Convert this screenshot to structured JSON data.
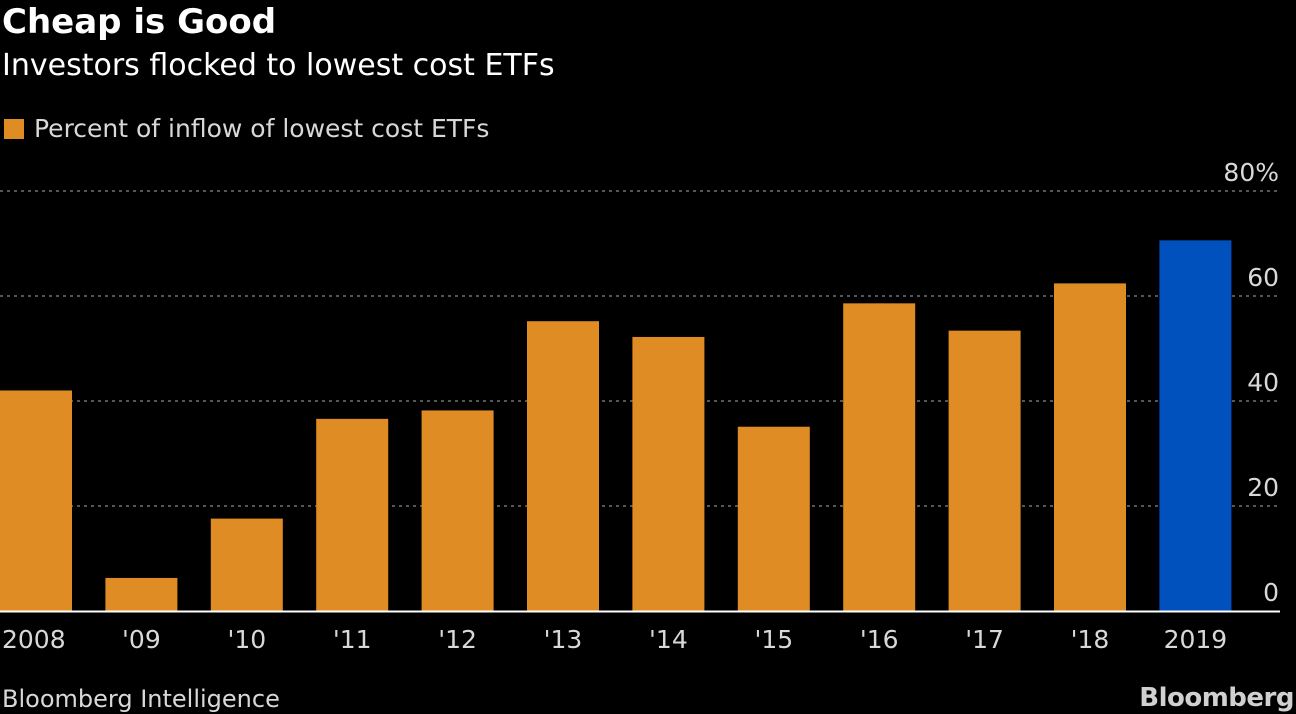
{
  "header": {
    "title": "Cheap is Good",
    "subtitle": "Investors flocked to lowest cost ETFs"
  },
  "footer": {
    "source": "Bloomberg Intelligence",
    "brand": "Bloomberg"
  },
  "colors": {
    "background": "#000000",
    "series": "#e08c24",
    "highlight": "#0050be",
    "grid": "#8a8a8a",
    "baseline": "#ffffff"
  },
  "chart_data": {
    "type": "bar",
    "categories": [
      "2008",
      "'09",
      "'10",
      "'11",
      "'12",
      "'13",
      "'14",
      "'15",
      "'16",
      "'17",
      "'18",
      "2019"
    ],
    "series": [
      {
        "name": "Percent of inflow of lowest cost ETFs",
        "values": [
          42,
          6.3,
          17.6,
          36.6,
          38.2,
          55.2,
          52.2,
          35.1,
          58.6,
          53.4,
          62.4,
          70.6
        ]
      }
    ],
    "highlight_index": 11,
    "ylim": [
      0,
      80
    ],
    "yticks": [
      {
        "value": 0,
        "label": "0"
      },
      {
        "value": 20,
        "label": "20"
      },
      {
        "value": 40,
        "label": "40"
      },
      {
        "value": 60,
        "label": "60"
      },
      {
        "value": 80,
        "label": "80%"
      }
    ],
    "grid": true,
    "legend_position": "top-left",
    "axis_side": "right"
  }
}
